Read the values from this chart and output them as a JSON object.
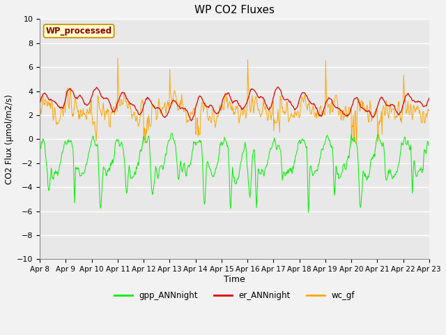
{
  "title": "WP CO2 Fluxes",
  "xlabel": "Time",
  "ylabel": "CO2 Flux (μmol/m2/s)",
  "ylim": [
    -10,
    10
  ],
  "yticks": [
    -10,
    -8,
    -6,
    -4,
    -2,
    0,
    2,
    4,
    6,
    8,
    10
  ],
  "x_tick_labels": [
    "Apr 8",
    "Apr 9",
    "Apr 10",
    "Apr 11",
    "Apr 12",
    "Apr 13",
    "Apr 14",
    "Apr 15",
    "Apr 16",
    "Apr 17",
    "Apr 18",
    "Apr 19",
    "Apr 20",
    "Apr 21",
    "Apr 22",
    "Apr 23"
  ],
  "annotation_text": "WP_processed",
  "annotation_color": "#8B0000",
  "annotation_bg": "#FFFFCC",
  "annotation_border": "#CC8800",
  "colors": {
    "gpp_ANNnight": "#00EE00",
    "er_ANNnight": "#DD0000",
    "wc_gf": "#FFA500"
  },
  "legend_labels": [
    "gpp_ANNnight",
    "er_ANNnight",
    "wc_gf"
  ],
  "bg_color": "#E8E8E8",
  "grid_color": "#FFFFFF",
  "num_points": 720,
  "seed": 7,
  "n_days": 15
}
